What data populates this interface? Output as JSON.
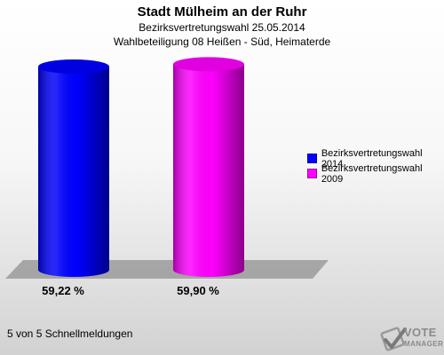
{
  "header": {
    "title": "Stadt Mülheim an der Ruhr",
    "subtitle1": "Bezirksvertretungswahl 25.05.2014",
    "subtitle2": "Wahlbeteiligung 08 Heißen - Süd, Heimaterde"
  },
  "chart_data": {
    "type": "bar",
    "categories": [
      "Bezirksvertretungswahl 2014",
      "Bezirksvertretungswahl 2009"
    ],
    "values": [
      59.22,
      59.9
    ],
    "value_labels": [
      "59,22 %",
      "59,90 %"
    ],
    "colors": [
      "#0000ff",
      "#ff00ff"
    ],
    "ylim": [
      0,
      60
    ],
    "grid": false,
    "legend_position": "right",
    "bar_style": "3d-cylinder"
  },
  "legend": {
    "items": [
      {
        "label": "Bezirksvertretungswahl 2014",
        "color": "#0000ff"
      },
      {
        "label": "Bezirksvertretungswahl 2009",
        "color": "#ff00ff"
      }
    ]
  },
  "footer": {
    "note": "5 von 5 Schnellmeldungen"
  },
  "logo": {
    "line1": "VOTE",
    "line2": "MANAGER",
    "icon": "checkmark-ballot-icon"
  }
}
